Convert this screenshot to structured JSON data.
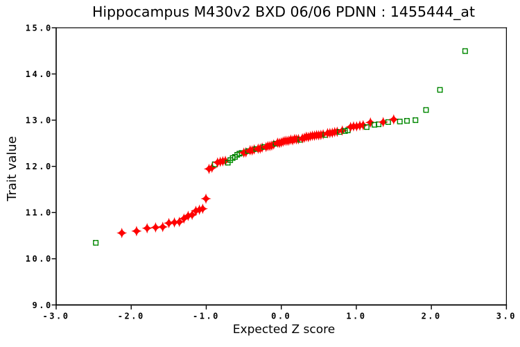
{
  "window": {
    "background": "#ffffff"
  },
  "chart_data": {
    "type": "scatter",
    "title": "Hippocampus M430v2 BXD 06/06 PDNN : 1455444_at",
    "xlabel": "Expected Z score",
    "ylabel": "Trait value",
    "xlim": [
      -3.0,
      3.0
    ],
    "ylim": [
      9.0,
      15.0
    ],
    "xtick_values": [
      -3,
      -2,
      -1,
      0,
      1,
      2,
      3
    ],
    "xtick_labels": [
      "-3.0",
      "-2.0",
      "-1.0",
      "0.0",
      "1.0",
      "2.0",
      "3.0"
    ],
    "ytick_values": [
      9,
      10,
      11,
      12,
      13,
      14,
      15
    ],
    "ytick_labels": [
      "9.0",
      "10.0",
      "11.0",
      "12.0",
      "13.0",
      "14.0",
      "15.0"
    ],
    "grid": false,
    "legend_position": "none",
    "frame_color": "#000000",
    "text_color": "#000000",
    "series": [
      {
        "name": "trait-values",
        "marker": "concave-diamond",
        "color": "#fe0000",
        "points": [
          [
            -2.125,
            10.557
          ],
          [
            -1.929,
            10.598
          ],
          [
            -1.788,
            10.66
          ],
          [
            -1.675,
            10.678
          ],
          [
            -1.58,
            10.688
          ],
          [
            -1.498,
            10.772
          ],
          [
            -1.424,
            10.786
          ],
          [
            -1.358,
            10.797
          ],
          [
            -1.297,
            10.87
          ],
          [
            -1.241,
            10.928
          ],
          [
            -1.188,
            10.95
          ],
          [
            -1.138,
            11.037
          ],
          [
            -1.091,
            11.06
          ],
          [
            -1.047,
            11.082
          ],
          [
            -1.004,
            11.3
          ],
          [
            -0.963,
            11.945
          ],
          [
            -0.924,
            11.97
          ],
          [
            -0.849,
            12.085
          ],
          [
            -0.813,
            12.1
          ],
          [
            -0.779,
            12.11
          ],
          [
            -0.745,
            12.12
          ],
          [
            -0.499,
            12.296
          ],
          [
            -0.471,
            12.304
          ],
          [
            -0.415,
            12.349
          ],
          [
            -0.388,
            12.345
          ],
          [
            -0.361,
            12.366
          ],
          [
            -0.308,
            12.382
          ],
          [
            -0.281,
            12.384
          ],
          [
            -0.255,
            12.405
          ],
          [
            -0.203,
            12.419
          ],
          [
            -0.178,
            12.438
          ],
          [
            -0.152,
            12.44
          ],
          [
            -0.127,
            12.45
          ],
          [
            -0.101,
            12.473
          ],
          [
            -0.05,
            12.513
          ],
          [
            -0.025,
            12.506
          ],
          [
            0.0,
            12.518
          ],
          [
            0.025,
            12.536
          ],
          [
            0.05,
            12.552
          ],
          [
            0.076,
            12.552
          ],
          [
            0.101,
            12.556
          ],
          [
            0.127,
            12.578
          ],
          [
            0.152,
            12.564
          ],
          [
            0.178,
            12.591
          ],
          [
            0.203,
            12.585
          ],
          [
            0.229,
            12.589
          ],
          [
            0.281,
            12.607
          ],
          [
            0.308,
            12.62
          ],
          [
            0.334,
            12.641
          ],
          [
            0.361,
            12.634
          ],
          [
            0.388,
            12.652
          ],
          [
            0.415,
            12.662
          ],
          [
            0.443,
            12.664
          ],
          [
            0.471,
            12.676
          ],
          [
            0.499,
            12.673
          ],
          [
            0.528,
            12.681
          ],
          [
            0.558,
            12.693
          ],
          [
            0.617,
            12.719
          ],
          [
            0.648,
            12.721
          ],
          [
            0.68,
            12.726
          ],
          [
            0.712,
            12.742
          ],
          [
            0.745,
            12.749
          ],
          [
            0.813,
            12.775
          ],
          [
            0.924,
            12.852
          ],
          [
            0.963,
            12.865
          ],
          [
            1.004,
            12.864
          ],
          [
            1.047,
            12.882
          ],
          [
            1.091,
            12.891
          ],
          [
            1.188,
            12.949
          ],
          [
            1.358,
            12.958
          ],
          [
            1.498,
            13.015
          ]
        ]
      },
      {
        "name": "reference-samples",
        "marker": "open-square",
        "color": "#00a800",
        "edge_dash_color": "#000000",
        "points": [
          [
            -2.472,
            10.345
          ],
          [
            -0.886,
            12.045
          ],
          [
            -0.712,
            12.08
          ],
          [
            -0.68,
            12.135
          ],
          [
            -0.648,
            12.18
          ],
          [
            -0.617,
            12.205
          ],
          [
            -0.587,
            12.25
          ],
          [
            -0.558,
            12.275
          ],
          [
            -0.528,
            12.29
          ],
          [
            -0.443,
            12.33
          ],
          [
            -0.334,
            12.375
          ],
          [
            -0.229,
            12.42
          ],
          [
            -0.076,
            12.49
          ],
          [
            0.255,
            12.575
          ],
          [
            0.587,
            12.68
          ],
          [
            0.779,
            12.745
          ],
          [
            0.849,
            12.765
          ],
          [
            0.886,
            12.78
          ],
          [
            1.138,
            12.85
          ],
          [
            1.241,
            12.9
          ],
          [
            1.297,
            12.91
          ],
          [
            1.424,
            12.958
          ],
          [
            1.58,
            12.97
          ],
          [
            1.675,
            12.985
          ],
          [
            1.788,
            13.0
          ],
          [
            1.929,
            13.22
          ],
          [
            2.115,
            13.655
          ],
          [
            2.45,
            14.495
          ]
        ]
      }
    ],
    "draw_order": "merged-by-x"
  }
}
